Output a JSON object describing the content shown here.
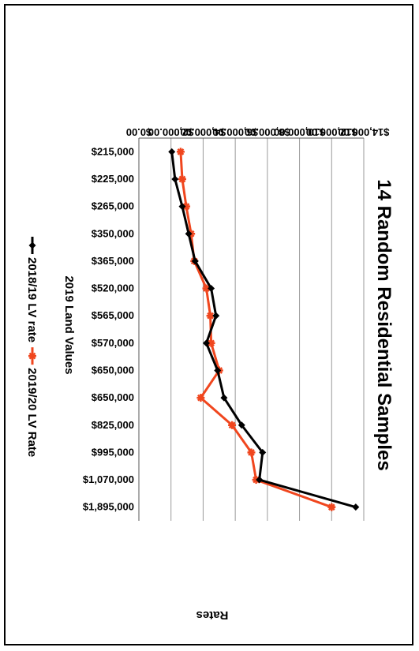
{
  "chart_data": {
    "type": "line",
    "title": "14 Random Residential Samples",
    "xlabel": "2019 Land Values",
    "ylabel": "Rates",
    "categories": [
      "$215,000",
      "$225,000",
      "$265,000",
      "$350,000",
      "$365,000",
      "$520,000",
      "$565,000",
      "$570,000",
      "$650,000",
      "$650,000",
      "$825,000",
      "$995,000",
      "$1,070,000",
      "$1,895,000"
    ],
    "ylim": [
      0,
      14000
    ],
    "yticks": [
      "$0.00",
      "$2,000.00",
      "$4,000.00",
      "$6,000.00",
      "$8,000.00",
      "$10,000.00",
      "$12,000.00",
      "$14,000.00"
    ],
    "grid": true,
    "legend_position": "bottom",
    "series": [
      {
        "name": "2018/19 LV rate",
        "color": "#000000",
        "marker": "diamond",
        "values": [
          2050,
          2250,
          2700,
          3100,
          3500,
          4500,
          4800,
          4200,
          4900,
          5300,
          6400,
          7700,
          7500,
          13500
        ]
      },
      {
        "name": "2019/20 LV Rate",
        "color": "#f0461e",
        "marker": "star",
        "values": [
          2600,
          2700,
          2950,
          3250,
          3450,
          4200,
          4450,
          4500,
          5000,
          3850,
          5800,
          7000,
          7300,
          12000
        ]
      }
    ]
  }
}
